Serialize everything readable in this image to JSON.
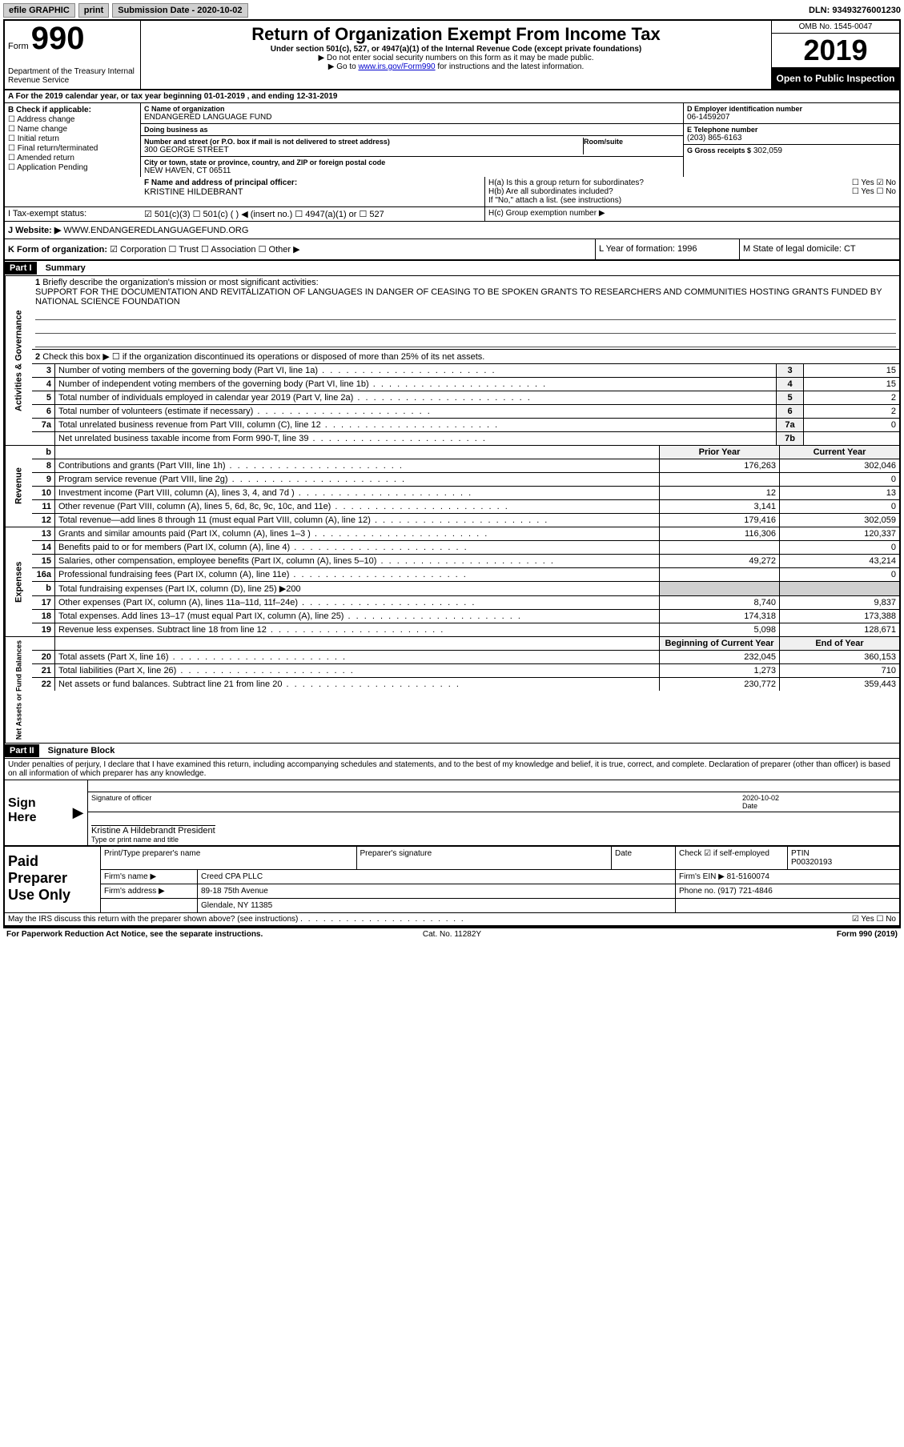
{
  "topbar": {
    "efile": "efile GRAPHIC",
    "print": "print",
    "sub_label": "Submission Date - 2020-10-02",
    "dln": "DLN: 93493276001230"
  },
  "header": {
    "form_word": "Form",
    "form_num": "990",
    "dept": "Department of the Treasury\nInternal Revenue Service",
    "title": "Return of Organization Exempt From Income Tax",
    "subtitle": "Under section 501(c), 527, or 4947(a)(1) of the Internal Revenue Code (except private foundations)",
    "note1": "▶ Do not enter social security numbers on this form as it may be made public.",
    "note2_pre": "▶ Go to ",
    "note2_link": "www.irs.gov/Form990",
    "note2_post": " for instructions and the latest information.",
    "omb": "OMB No. 1545-0047",
    "year": "2019",
    "open": "Open to Public Inspection"
  },
  "lineA": "A   For the 2019 calendar year, or tax year beginning 01-01-2019    , and ending 12-31-2019",
  "b": {
    "title": "B Check if applicable:",
    "opts": [
      "☐ Address change",
      "☐ Name change",
      "☐ Initial return",
      "☐ Final return/terminated",
      "☐ Amended return",
      "☐ Application Pending"
    ]
  },
  "c": {
    "name_lbl": "C Name of organization",
    "name": "ENDANGERED LANGUAGE FUND",
    "dba_lbl": "Doing business as",
    "dba": "",
    "addr_lbl": "Number and street (or P.O. box if mail is not delivered to street address)",
    "addr": "300 GEORGE STREET",
    "room_lbl": "Room/suite",
    "city_lbl": "City or town, state or province, country, and ZIP or foreign postal code",
    "city": "NEW HAVEN, CT  06511"
  },
  "d": {
    "lbl": "D Employer identification number",
    "val": "06-1459207"
  },
  "e": {
    "lbl": "E Telephone number",
    "val": "(203) 865-6163"
  },
  "g": {
    "lbl": "G Gross receipts $",
    "val": "302,059"
  },
  "f": {
    "lbl": "F  Name and address of principal officer:",
    "val": "KRISTINE HILDEBRANT"
  },
  "h": {
    "a": "H(a)  Is this a group return for subordinates?",
    "a_ans": "☐ Yes  ☑ No",
    "b": "H(b)  Are all subordinates included?",
    "b_ans": "☐ Yes  ☐ No",
    "b_note": "If \"No,\" attach a list. (see instructions)",
    "c": "H(c)  Group exemption number ▶"
  },
  "i": {
    "lbl": "I   Tax-exempt status:",
    "opts": "☑ 501(c)(3)    ☐ 501(c) (  ) ◀ (insert no.)    ☐ 4947(a)(1) or   ☐ 527"
  },
  "j": {
    "lbl": "J   Website: ▶",
    "val": "WWW.ENDANGEREDLANGUAGEFUND.ORG"
  },
  "k": {
    "lbl": "K Form of organization:",
    "opts": "☑ Corporation  ☐ Trust  ☐ Association  ☐ Other ▶"
  },
  "l": "L Year of formation: 1996",
  "m": "M State of legal domicile: CT",
  "part1": {
    "hdr": "Part I",
    "title": "Summary"
  },
  "s1": {
    "num": "1",
    "text": "Briefly describe the organization's mission or most significant activities:",
    "desc": "SUPPORT FOR THE DOCUMENTATION AND REVITALIZATION OF LANGUAGES IN DANGER OF CEASING TO BE SPOKEN GRANTS TO RESEARCHERS AND COMMUNITIES HOSTING GRANTS FUNDED BY NATIONAL SCIENCE FOUNDATION"
  },
  "s2": {
    "num": "2",
    "text": "Check this box ▶ ☐ if the organization discontinued its operations or disposed of more than 25% of its net assets."
  },
  "gov_rows": [
    {
      "n": "3",
      "t": "Number of voting members of the governing body (Part VI, line 1a)",
      "box": "3",
      "v": "15"
    },
    {
      "n": "4",
      "t": "Number of independent voting members of the governing body (Part VI, line 1b)",
      "box": "4",
      "v": "15"
    },
    {
      "n": "5",
      "t": "Total number of individuals employed in calendar year 2019 (Part V, line 2a)",
      "box": "5",
      "v": "2"
    },
    {
      "n": "6",
      "t": "Total number of volunteers (estimate if necessary)",
      "box": "6",
      "v": "2"
    },
    {
      "n": "7a",
      "t": "Total unrelated business revenue from Part VIII, column (C), line 12",
      "box": "7a",
      "v": "0"
    },
    {
      "n": "",
      "t": "Net unrelated business taxable income from Form 990-T, line 39",
      "box": "7b",
      "v": ""
    }
  ],
  "fin_hdr": {
    "py": "Prior Year",
    "cy": "Current Year"
  },
  "rev_rows": [
    {
      "n": "8",
      "t": "Contributions and grants (Part VIII, line 1h)",
      "py": "176,263",
      "cy": "302,046"
    },
    {
      "n": "9",
      "t": "Program service revenue (Part VIII, line 2g)",
      "py": "",
      "cy": "0"
    },
    {
      "n": "10",
      "t": "Investment income (Part VIII, column (A), lines 3, 4, and 7d )",
      "py": "12",
      "cy": "13"
    },
    {
      "n": "11",
      "t": "Other revenue (Part VIII, column (A), lines 5, 6d, 8c, 9c, 10c, and 11e)",
      "py": "3,141",
      "cy": "0"
    },
    {
      "n": "12",
      "t": "Total revenue—add lines 8 through 11 (must equal Part VIII, column (A), line 12)",
      "py": "179,416",
      "cy": "302,059"
    }
  ],
  "exp_rows": [
    {
      "n": "13",
      "t": "Grants and similar amounts paid (Part IX, column (A), lines 1–3 )",
      "py": "116,306",
      "cy": "120,337"
    },
    {
      "n": "14",
      "t": "Benefits paid to or for members (Part IX, column (A), line 4)",
      "py": "",
      "cy": "0"
    },
    {
      "n": "15",
      "t": "Salaries, other compensation, employee benefits (Part IX, column (A), lines 5–10)",
      "py": "49,272",
      "cy": "43,214"
    },
    {
      "n": "16a",
      "t": "Professional fundraising fees (Part IX, column (A), line 11e)",
      "py": "",
      "cy": "0"
    },
    {
      "n": "b",
      "t": "Total fundraising expenses (Part IX, column (D), line 25) ▶200",
      "py": "SHADE",
      "cy": "SHADE"
    },
    {
      "n": "17",
      "t": "Other expenses (Part IX, column (A), lines 11a–11d, 11f–24e)",
      "py": "8,740",
      "cy": "9,837"
    },
    {
      "n": "18",
      "t": "Total expenses. Add lines 13–17 (must equal Part IX, column (A), line 25)",
      "py": "174,318",
      "cy": "173,388"
    },
    {
      "n": "19",
      "t": "Revenue less expenses. Subtract line 18 from line 12",
      "py": "5,098",
      "cy": "128,671"
    }
  ],
  "na_hdr": {
    "py": "Beginning of Current Year",
    "cy": "End of Year"
  },
  "na_rows": [
    {
      "n": "20",
      "t": "Total assets (Part X, line 16)",
      "py": "232,045",
      "cy": "360,153"
    },
    {
      "n": "21",
      "t": "Total liabilities (Part X, line 26)",
      "py": "1,273",
      "cy": "710"
    },
    {
      "n": "22",
      "t": "Net assets or fund balances. Subtract line 21 from line 20",
      "py": "230,772",
      "cy": "359,443"
    }
  ],
  "part2": {
    "hdr": "Part II",
    "title": "Signature Block"
  },
  "penalty": "Under penalties of perjury, I declare that I have examined this return, including accompanying schedules and statements, and to the best of my knowledge and belief, it is true, correct, and complete. Declaration of preparer (other than officer) is based on all information of which preparer has any knowledge.",
  "sign": {
    "here": "Sign Here",
    "sig_lbl": "Signature of officer",
    "date_lbl": "Date",
    "date_val": "2020-10-02",
    "name": "Kristine A Hildebrandt  President",
    "name_lbl": "Type or print name and title"
  },
  "paid": {
    "lbl": "Paid Preparer Use Only",
    "h1": "Print/Type preparer's name",
    "h2": "Preparer's signature",
    "h3": "Date",
    "h4": "Check ☑ if self-employed",
    "h5_lbl": "PTIN",
    "h5": "P00320193",
    "firm_lbl": "Firm's name     ▶",
    "firm": "Creed CPA PLLC",
    "ein_lbl": "Firm's EIN ▶",
    "ein": "81-5160074",
    "addr_lbl": "Firm's address ▶",
    "addr": "89-18 75th Avenue",
    "city": "Glendale, NY  11385",
    "phone_lbl": "Phone no.",
    "phone": "(917) 721-4846"
  },
  "discuss": {
    "q": "May the IRS discuss this return with the preparer shown above? (see instructions)",
    "a": "☑ Yes  ☐ No"
  },
  "footer": {
    "l": "For Paperwork Reduction Act Notice, see the separate instructions.",
    "c": "Cat. No. 11282Y",
    "r": "Form 990 (2019)"
  },
  "vlabels": {
    "gov": "Activities & Governance",
    "rev": "Revenue",
    "exp": "Expenses",
    "na": "Net Assets or Fund Balances"
  }
}
